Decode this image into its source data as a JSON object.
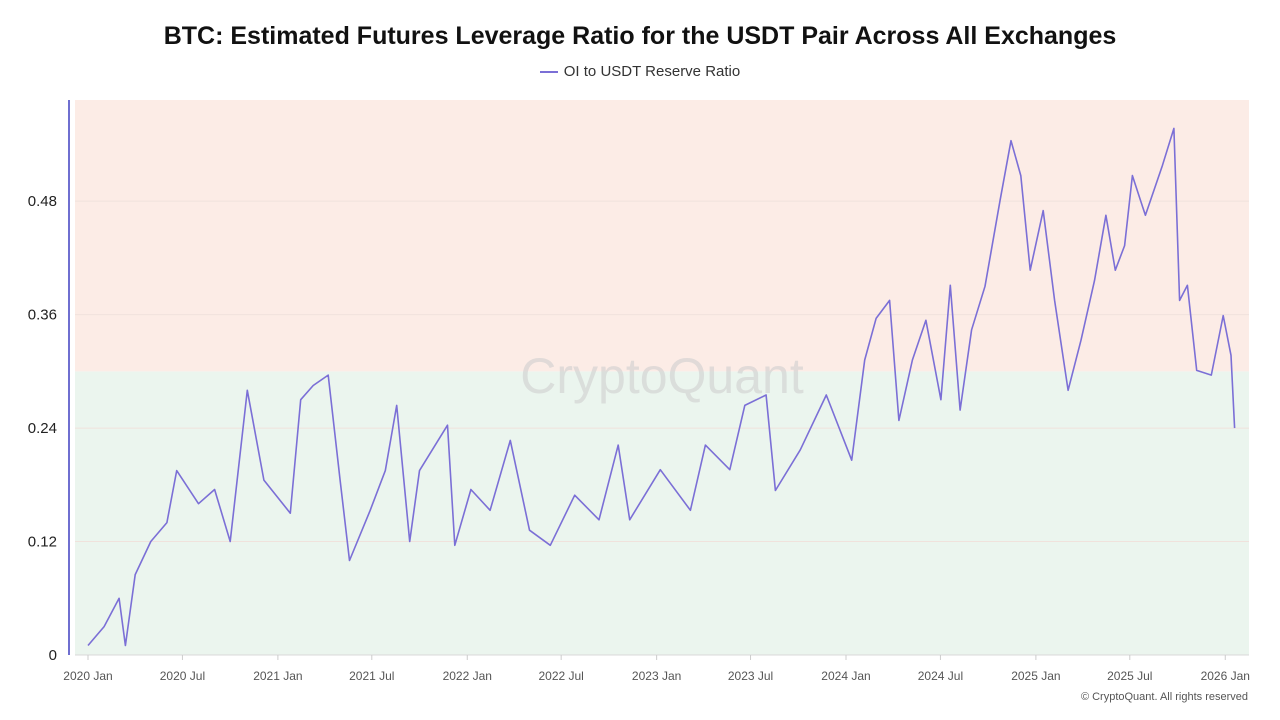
{
  "chart_data": {
    "type": "line",
    "title": "BTC: Estimated Futures Leverage Ratio for the USDT Pair Across All Exchanges",
    "legend": {
      "position": "top-center",
      "entries": [
        "OI to USDT Reserve Ratio"
      ]
    },
    "watermark": "CryptoQuant",
    "copyright": "© CryptoQuant. All rights reserved",
    "xlabel": "",
    "ylabel": "",
    "ylim": [
      0,
      0.587
    ],
    "xlim": [
      "2019-12-10",
      "2026-02-20"
    ],
    "yticks": [
      "0",
      "0.12",
      "0.24",
      "0.36",
      "0.48"
    ],
    "ytick_values": [
      0,
      0.12,
      0.24,
      0.36,
      0.48
    ],
    "xticks": [
      {
        "date": "2020-01-01",
        "label": "2020 Jan"
      },
      {
        "date": "2020-07-01",
        "label": "2020 Jul"
      },
      {
        "date": "2021-01-01",
        "label": "2021 Jan"
      },
      {
        "date": "2021-07-01",
        "label": "2021 Jul"
      },
      {
        "date": "2022-01-01",
        "label": "2022 Jan"
      },
      {
        "date": "2022-07-01",
        "label": "2022 Jul"
      },
      {
        "date": "2023-01-01",
        "label": "2023 Jan"
      },
      {
        "date": "2023-07-01",
        "label": "2023 Jul"
      },
      {
        "date": "2024-01-01",
        "label": "2024 Jan"
      },
      {
        "date": "2024-07-01",
        "label": "2024 Jul"
      },
      {
        "date": "2025-01-01",
        "label": "2025 Jan"
      },
      {
        "date": "2025-07-01",
        "label": "2025 Jul"
      },
      {
        "date": "2026-01-01",
        "label": "2026 Jan"
      }
    ],
    "grid": true,
    "bands": [
      {
        "from": 0,
        "to": 0.3,
        "color": "#ebf5ee"
      },
      {
        "from": 0.3,
        "to": 0.587,
        "color": "#fcece6"
      }
    ],
    "colors": {
      "line": "#7b6fd6",
      "axis": "#6f6fd0"
    },
    "series": [
      {
        "name": "OI to USDT Reserve Ratio",
        "points": [
          [
            "2020-01-01",
            0.01
          ],
          [
            "2020-02-01",
            0.03
          ],
          [
            "2020-03-01",
            0.06
          ],
          [
            "2020-03-13",
            0.01
          ],
          [
            "2020-04-01",
            0.085
          ],
          [
            "2020-05-01",
            0.12
          ],
          [
            "2020-06-01",
            0.14
          ],
          [
            "2020-06-20",
            0.195
          ],
          [
            "2020-08-01",
            0.16
          ],
          [
            "2020-09-01",
            0.175
          ],
          [
            "2020-10-01",
            0.12
          ],
          [
            "2020-11-03",
            0.28
          ],
          [
            "2020-12-05",
            0.185
          ],
          [
            "2021-01-25",
            0.15
          ],
          [
            "2021-02-14",
            0.27
          ],
          [
            "2021-03-10",
            0.285
          ],
          [
            "2021-04-08",
            0.296
          ],
          [
            "2021-05-01",
            0.185
          ],
          [
            "2021-05-19",
            0.1
          ],
          [
            "2021-06-28",
            0.153
          ],
          [
            "2021-07-27",
            0.195
          ],
          [
            "2021-08-18",
            0.264
          ],
          [
            "2021-09-12",
            0.12
          ],
          [
            "2021-10-01",
            0.195
          ],
          [
            "2021-11-24",
            0.243
          ],
          [
            "2021-12-08",
            0.116
          ],
          [
            "2022-01-08",
            0.175
          ],
          [
            "2022-02-14",
            0.153
          ],
          [
            "2022-03-25",
            0.227
          ],
          [
            "2022-05-01",
            0.132
          ],
          [
            "2022-06-10",
            0.116
          ],
          [
            "2022-07-27",
            0.169
          ],
          [
            "2022-09-12",
            0.143
          ],
          [
            "2022-10-19",
            0.222
          ],
          [
            "2022-11-10",
            0.143
          ],
          [
            "2023-01-08",
            0.196
          ],
          [
            "2023-03-07",
            0.153
          ],
          [
            "2023-04-05",
            0.222
          ],
          [
            "2023-05-22",
            0.196
          ],
          [
            "2023-06-20",
            0.264
          ],
          [
            "2023-07-31",
            0.275
          ],
          [
            "2023-08-18",
            0.174
          ],
          [
            "2023-10-05",
            0.217
          ],
          [
            "2023-11-24",
            0.275
          ],
          [
            "2024-01-12",
            0.206
          ],
          [
            "2024-02-06",
            0.312
          ],
          [
            "2024-02-28",
            0.356
          ],
          [
            "2024-03-25",
            0.375
          ],
          [
            "2024-04-12",
            0.248
          ],
          [
            "2024-05-08",
            0.312
          ],
          [
            "2024-06-03",
            0.354
          ],
          [
            "2024-07-02",
            0.27
          ],
          [
            "2024-07-20",
            0.391
          ],
          [
            "2024-08-08",
            0.259
          ],
          [
            "2024-08-30",
            0.344
          ],
          [
            "2024-09-25",
            0.39
          ],
          [
            "2024-10-24",
            0.481
          ],
          [
            "2024-11-14",
            0.544
          ],
          [
            "2024-12-03",
            0.507
          ],
          [
            "2024-12-21",
            0.407
          ],
          [
            "2025-01-15",
            0.47
          ],
          [
            "2025-02-06",
            0.375
          ],
          [
            "2025-03-04",
            0.28
          ],
          [
            "2025-03-29",
            0.333
          ],
          [
            "2025-04-24",
            0.396
          ],
          [
            "2025-05-16",
            0.465
          ],
          [
            "2025-06-03",
            0.407
          ],
          [
            "2025-06-21",
            0.433
          ],
          [
            "2025-07-06",
            0.507
          ],
          [
            "2025-07-31",
            0.465
          ],
          [
            "2025-09-02",
            0.518
          ],
          [
            "2025-09-24",
            0.557
          ],
          [
            "2025-10-05",
            0.375
          ],
          [
            "2025-10-20",
            0.391
          ],
          [
            "2025-11-07",
            0.301
          ],
          [
            "2025-12-05",
            0.296
          ],
          [
            "2025-12-28",
            0.359
          ],
          [
            "2026-01-12",
            0.317
          ],
          [
            "2026-01-19",
            0.24
          ]
        ]
      }
    ]
  }
}
